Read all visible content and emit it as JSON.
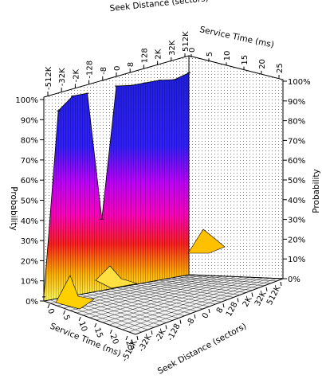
{
  "chart_data": {
    "type": "surface-3d",
    "title": "",
    "xlabel": "Seek Distance (sectors)",
    "ylabel": "Service Time (ms)",
    "zlabel": "Probability",
    "seek_ticks": [
      "-512K",
      "-32K",
      "-2K",
      "-128",
      "-8",
      "0",
      "8",
      "128",
      "2K",
      "32K",
      "512K"
    ],
    "service_ticks": [
      "0",
      "5",
      "10",
      "15",
      "20",
      "25"
    ],
    "probability_ticks": [
      "0%",
      "10%",
      "20%",
      "30%",
      "40%",
      "50%",
      "60%",
      "70%",
      "80%",
      "90%",
      "100%"
    ],
    "seek_range": [
      "-512K",
      "512K"
    ],
    "service_range": [
      0,
      25
    ],
    "probability_range": [
      0,
      1
    ],
    "cumulative_profile": {
      "description_axis": "cumulative probability reached at the largest service time, per seek distance",
      "x": [
        "-512K",
        "-32K",
        "-2K",
        "-128",
        "-8",
        "0",
        "8",
        "128",
        "2K",
        "32K",
        "512K"
      ],
      "values": [
        0.02,
        0.92,
        0.98,
        0.98,
        0.35,
        0.99,
        0.98,
        0.98,
        0.98,
        0.97,
        0.99
      ]
    },
    "colormap": [
      "#ffff60",
      "#ffb000",
      "#ff2020",
      "#ff00c0",
      "#c000ff",
      "#3020ff",
      "#2020e0"
    ],
    "grid": true
  }
}
